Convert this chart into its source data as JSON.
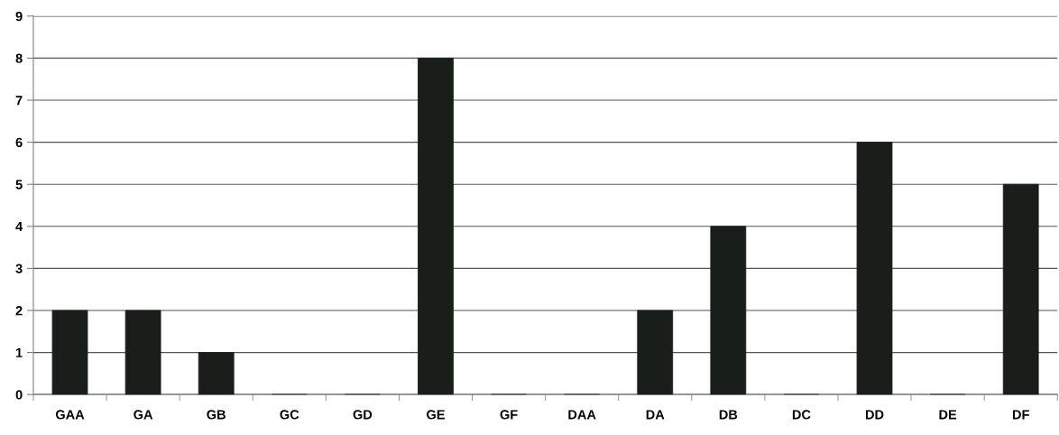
{
  "chart_data": {
    "type": "bar",
    "categories": [
      "GAA",
      "GA",
      "GB",
      "GC",
      "GD",
      "GE",
      "GF",
      "DAA",
      "DA",
      "DB",
      "DC",
      "DD",
      "DE",
      "DF"
    ],
    "values": [
      2,
      2,
      1,
      0,
      0,
      8,
      0,
      0,
      2,
      4,
      0,
      6,
      0,
      5
    ],
    "color": "#1a1e1b",
    "ylim": [
      0,
      9
    ],
    "yticks": [
      0,
      1,
      2,
      3,
      4,
      5,
      6,
      7,
      8,
      9
    ],
    "grid": "y"
  }
}
